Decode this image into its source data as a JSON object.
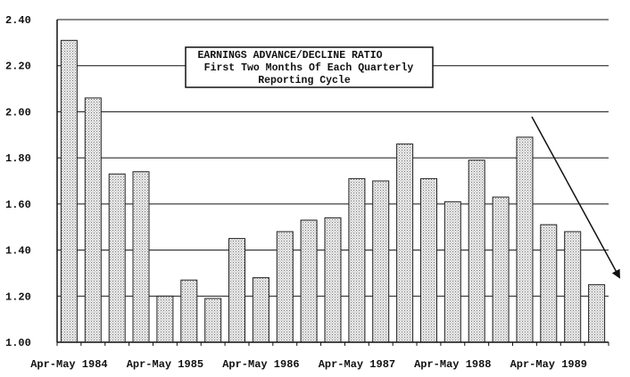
{
  "chart_data": {
    "type": "bar",
    "title_lines": [
      "EARNINGS ADVANCE/DECLINE RATIO",
      "First Two Months Of Each Quarterly",
      "Reporting Cycle"
    ],
    "xlabel": "",
    "ylabel": "",
    "ylim": [
      1.0,
      2.4
    ],
    "yticks": [
      "1.00",
      "1.20",
      "1.40",
      "1.60",
      "1.80",
      "2.00",
      "2.20",
      "2.40"
    ],
    "x_tick_labels": [
      "Apr-May 1984",
      "Apr-May 1985",
      "Apr-May 1986",
      "Apr-May 1987",
      "Apr-May 1988",
      "Apr-May 1989"
    ],
    "values": [
      2.31,
      2.06,
      1.73,
      1.74,
      1.2,
      1.27,
      1.19,
      1.45,
      1.28,
      1.48,
      1.53,
      1.54,
      1.71,
      1.7,
      1.86,
      1.71,
      1.61,
      1.79,
      1.63,
      1.89,
      1.51,
      1.48,
      1.25
    ],
    "grid": true,
    "legend": "none",
    "annotation": "downward-trend-arrow"
  }
}
